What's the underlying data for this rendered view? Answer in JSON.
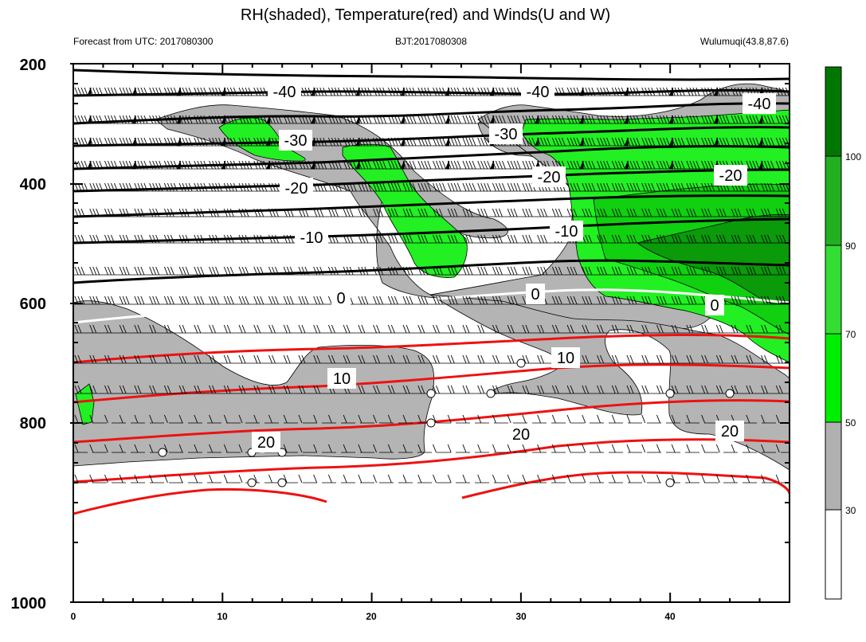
{
  "chart_data": {
    "type": "contour",
    "title": "RH(shaded), Temperature(red) and Winds(U and W)",
    "subtitle_left": "Forecast from UTC: 2017080300",
    "subtitle_center": "BJT:2017080308",
    "subtitle_right": "Wulumuqi(43.8,87.6)",
    "x_ticks": [
      "0",
      "10",
      "20",
      "30",
      "40"
    ],
    "xlim": [
      0,
      48
    ],
    "y_ticks": [
      "200",
      "400",
      "600",
      "800",
      "1000"
    ],
    "ylim": [
      1000,
      200
    ],
    "colorbar": {
      "labels": [
        "30",
        "50",
        "70",
        "90",
        "100"
      ],
      "colors": [
        "#ffffff",
        "#b0b0b0",
        "#00ee00",
        "#33dd33",
        "#20b020",
        "#007700"
      ]
    },
    "rh_fill_colors": {
      "gray": "#b4b4b4",
      "light_green": "#22f022",
      "mid_green": "#10d010",
      "dark_green": "#0a9a0a"
    },
    "temperature_color": "#ee1111",
    "zero_line_color": "#ffffff",
    "temperature_labels": [
      "-40",
      "-40",
      "-40",
      "-30",
      "-30",
      "-20",
      "-20",
      "-20",
      "-10",
      "-10",
      "0",
      "0",
      "0",
      "10",
      "10",
      "20",
      "20",
      "20"
    ]
  }
}
